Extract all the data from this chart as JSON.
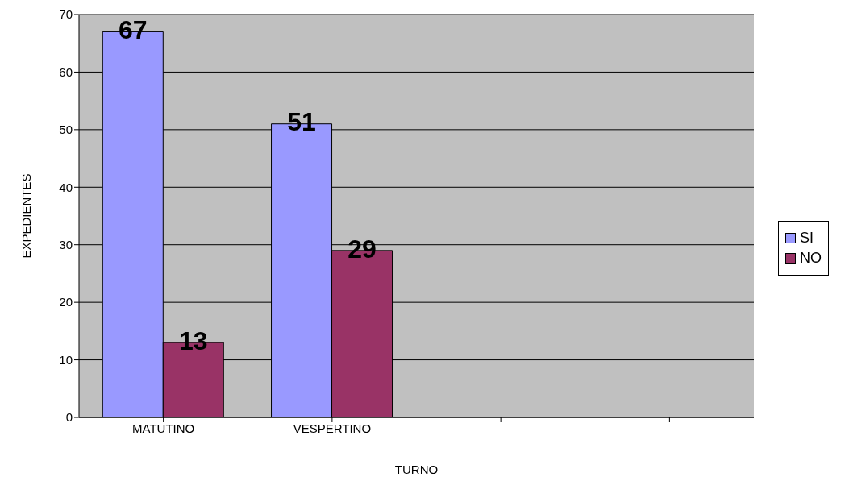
{
  "chart_data": {
    "type": "bar",
    "xlabel": "TURNO",
    "ylabel": "EXPEDIENTES",
    "categories": [
      "MATUTINO",
      "VESPERTINO",
      null,
      null
    ],
    "series": [
      {
        "name": "SI",
        "color": "#9999ff",
        "values": [
          67,
          51,
          null,
          null
        ]
      },
      {
        "name": "NO",
        "color": "#993366",
        "values": [
          13,
          29,
          null,
          null
        ]
      }
    ],
    "ylim": [
      0,
      70
    ],
    "yticks": [
      0,
      10,
      20,
      30,
      40,
      50,
      60,
      70
    ],
    "grid": "y",
    "legend": "right",
    "data_labels": true
  }
}
